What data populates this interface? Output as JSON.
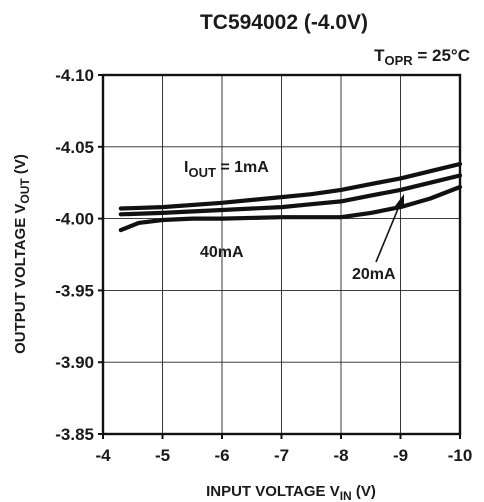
{
  "chart_data": {
    "type": "line",
    "title": "TC594002 (-4.0V)",
    "condition": {
      "prefix": "T",
      "subscript": "OPR",
      "text": " = 25°C"
    },
    "xlabel": {
      "main": "INPUT VOLTAGE V",
      "subscript": "IN",
      "suffix": " (V)"
    },
    "ylabel": {
      "main": "OUTPUT VOLTAGE V",
      "subscript": "OUT",
      "suffix": " (V)"
    },
    "xlim": [
      -4,
      -10
    ],
    "ylim": [
      -3.85,
      -4.1
    ],
    "x_ticks": [
      -4,
      -5,
      -6,
      -7,
      -8,
      -9,
      -10
    ],
    "x_tick_labels": [
      "-4",
      "-5",
      "-6",
      "-7",
      "-8",
      "-9",
      "-10"
    ],
    "y_ticks": [
      -4.1,
      -4.05,
      -4.0,
      -3.95,
      -3.9,
      -3.85
    ],
    "y_tick_labels": [
      "-4.10",
      "-4.05",
      "-4.00",
      "-3.95",
      "-3.90",
      "-3.85"
    ],
    "grid": true,
    "series": [
      {
        "name": "IOUT = 1mA",
        "x": [
          -4.3,
          -5,
          -6,
          -7,
          -7.5,
          -8,
          -8.5,
          -9,
          -9.5,
          -10
        ],
        "y": [
          -4.007,
          -4.008,
          -4.011,
          -4.015,
          -4.017,
          -4.02,
          -4.024,
          -4.028,
          -4.033,
          -4.038
        ]
      },
      {
        "name": "20mA",
        "x": [
          -4.3,
          -5,
          -6,
          -7,
          -7.5,
          -8,
          -8.5,
          -9,
          -9.5,
          -10
        ],
        "y": [
          -4.003,
          -4.004,
          -4.006,
          -4.008,
          -4.01,
          -4.012,
          -4.016,
          -4.02,
          -4.025,
          -4.03
        ]
      },
      {
        "name": "40mA",
        "x": [
          -4.3,
          -4.6,
          -5,
          -5.5,
          -6,
          -7,
          -7.5,
          -8,
          -8.5,
          -9,
          -9.5,
          -10
        ],
        "y": [
          -3.992,
          -3.997,
          -3.999,
          -4.0,
          -4.0,
          -4.001,
          -4.001,
          -4.001,
          -4.004,
          -4.008,
          -4.014,
          -4.022
        ]
      }
    ],
    "annotations": [
      {
        "id": "label-1mA",
        "main": "I",
        "subscript": "OUT",
        "text": " = 1mA"
      },
      {
        "id": "label-40mA",
        "text": "40mA"
      },
      {
        "id": "label-20mA",
        "text": "20mA"
      }
    ]
  }
}
